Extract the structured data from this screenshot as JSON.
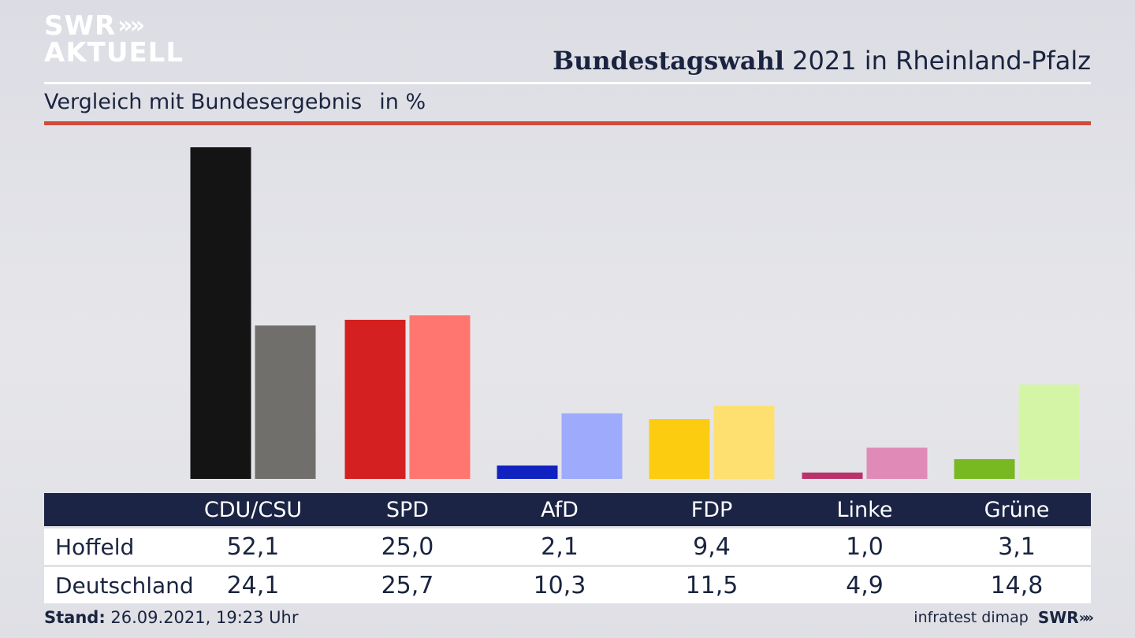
{
  "header": {
    "logo_line1": "SWR",
    "logo_chevrons": "»",
    "logo_line2": "AKTUELL",
    "title_bold": "Bundestagswahl",
    "title_rest": " 2021 in Rheinland-Pfalz",
    "subtitle": "Vergleich mit Bundesergebnis",
    "unit": "in %"
  },
  "footer": {
    "stand_label": "Stand:",
    "stand_value": " 26.09.2021, 19:23 Uhr",
    "source": "infratest dimap",
    "brand": "SWR",
    "brand_chevrons": "»"
  },
  "chart_data": {
    "type": "bar",
    "categories": [
      "CDU/CSU",
      "SPD",
      "AfD",
      "FDP",
      "Linke",
      "Grüne"
    ],
    "series": [
      {
        "name": "Hoffeld",
        "values": [
          52.1,
          25.0,
          2.1,
          9.4,
          1.0,
          3.1
        ],
        "colors": [
          "#141414",
          "#d42020",
          "#1022c0",
          "#fccc10",
          "#b8336a",
          "#78b820"
        ]
      },
      {
        "name": "Deutschland",
        "values": [
          24.1,
          25.7,
          10.3,
          11.5,
          4.9,
          14.8
        ],
        "colors": [
          "#716f6c",
          "#ff7670",
          "#9eaafc",
          "#fde070",
          "#e08ab8",
          "#d4f5a6"
        ]
      }
    ],
    "ylim": [
      0,
      52.1
    ],
    "table": {
      "rows": [
        {
          "label": "Hoffeld",
          "values": [
            "52,1",
            "25,0",
            "2,1",
            "9,4",
            "1,0",
            "3,1"
          ]
        },
        {
          "label": "Deutschland",
          "values": [
            "24,1",
            "25,7",
            "10,3",
            "11,5",
            "4,9",
            "14,8"
          ]
        }
      ]
    }
  }
}
